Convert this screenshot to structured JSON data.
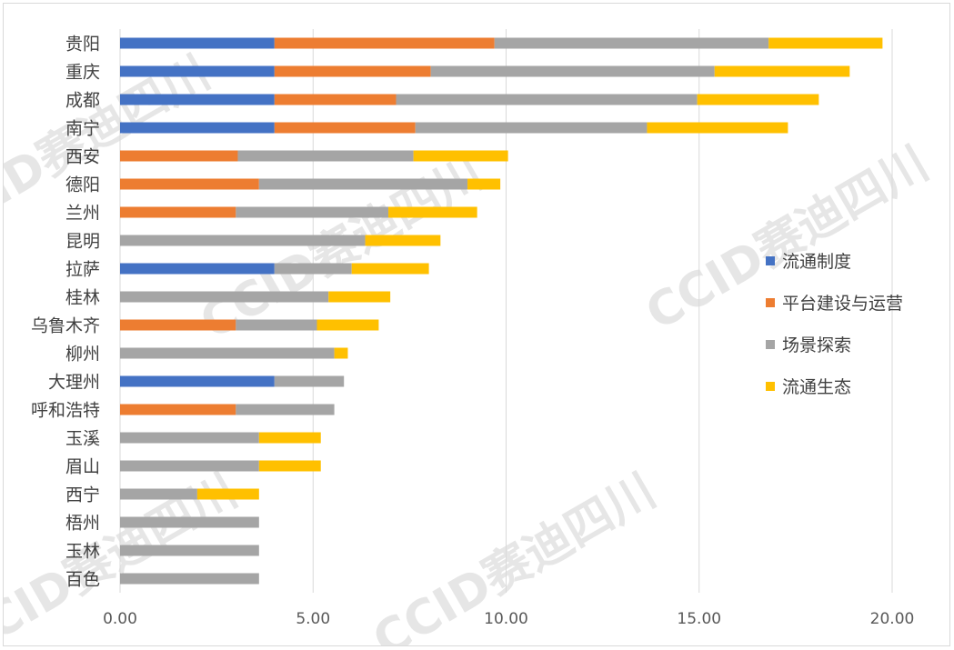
{
  "watermark": {
    "text": "CCID赛迪四川"
  },
  "chart_data": {
    "type": "bar",
    "orientation": "horizontal",
    "stacked": true,
    "categories": [
      "贵阳",
      "重庆",
      "成都",
      "南宁",
      "西安",
      "德阳",
      "兰州",
      "昆明",
      "拉萨",
      "桂林",
      "乌鲁木齐",
      "柳州",
      "大理州",
      "呼和浩特",
      "玉溪",
      "眉山",
      "西宁",
      "梧州",
      "玉林",
      "百色"
    ],
    "series": [
      {
        "name": "流通制度",
        "color": "#4472c4",
        "values": [
          4.0,
          4.0,
          4.0,
          4.0,
          0,
          0,
          0,
          0,
          4.0,
          0,
          0,
          0,
          4.0,
          0,
          0,
          0,
          0,
          0,
          0,
          0
        ]
      },
      {
        "name": "平台建设与运营",
        "color": "#ed7d31",
        "values": [
          5.7,
          4.05,
          3.15,
          3.65,
          3.05,
          3.6,
          3.0,
          0,
          0,
          0,
          3.0,
          0,
          0,
          3.0,
          0,
          0,
          0,
          0,
          0,
          0
        ]
      },
      {
        "name": "场景探索",
        "color": "#a5a5a5",
        "values": [
          7.1,
          7.35,
          7.8,
          6.0,
          4.55,
          5.4,
          3.95,
          6.35,
          2.0,
          5.4,
          2.1,
          5.55,
          1.8,
          2.55,
          3.6,
          3.6,
          2.0,
          3.6,
          3.6,
          3.6
        ]
      },
      {
        "name": "流通生态",
        "color": "#ffc000",
        "values": [
          2.95,
          3.5,
          3.15,
          3.65,
          2.45,
          0.85,
          2.3,
          1.95,
          2.0,
          1.6,
          1.6,
          0.35,
          0,
          0,
          1.6,
          1.6,
          1.6,
          0,
          0,
          0
        ]
      }
    ],
    "xlim": [
      0,
      20
    ],
    "xticks": [
      0,
      5,
      10,
      15,
      20
    ],
    "xtick_labels": [
      "0.00",
      "5.00",
      "10.00",
      "15.00",
      "20.00"
    ],
    "grid": "vertical",
    "legend": "right",
    "title": "",
    "xlabel": "",
    "ylabel": ""
  }
}
